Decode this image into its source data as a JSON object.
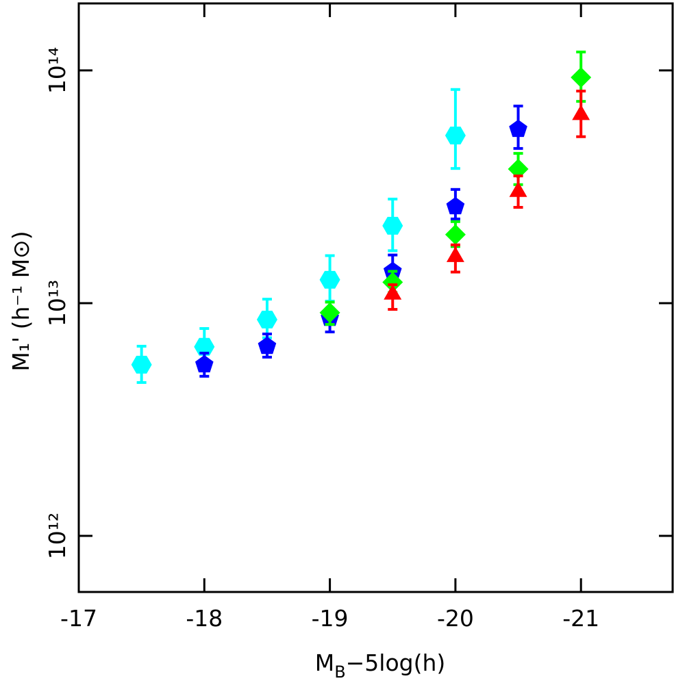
{
  "chart_data": {
    "type": "scatter",
    "x_label_parts": [
      "M",
      "B",
      "−5log(h)"
    ],
    "y_label": "M₁' (h⁻¹ M⊙)",
    "xlim": [
      -17,
      -21.73
    ],
    "xticks": [
      -17,
      -18,
      -19,
      -20,
      -21
    ],
    "ylim": [
      574000000000.0,
      194000000000000.0
    ],
    "log_y": true,
    "yticks": [
      {
        "value": 1000000000000.0,
        "label": "10¹²"
      },
      {
        "value": 10000000000000.0,
        "label": "10¹³"
      },
      {
        "value": 100000000000000.0,
        "label": "10¹⁴"
      }
    ],
    "series": [
      {
        "color": "#00ffff",
        "marker": "hexagon",
        "x": [
          -17.5,
          -18,
          -18.5,
          -19,
          -19.5,
          -20
        ],
        "values": [
          5440000000000.0,
          6490000000000.0,
          8500000000000.0,
          12600000000000.0,
          21500000000000.0,
          52500000000000.0
        ],
        "lower": [
          4560000000000.0,
          5440000000000.0,
          7100000000000.0,
          10200000000000.0,
          16800000000000.0,
          37900000000000.0
        ],
        "upper": [
          6530000000000.0,
          7780000000000.0,
          10400000000000.0,
          16000000000000.0,
          28000000000000.0,
          82800000000000.0
        ]
      },
      {
        "color": "#0000ff",
        "marker": "pentagon",
        "x": [
          -18,
          -18.5,
          -19,
          -19.5,
          -20,
          -20.5
        ],
        "values": [
          5440000000000.0,
          6530000000000.0,
          8620000000000.0,
          13700000000000.0,
          26000000000000.0,
          55900000000000.0
        ],
        "lower": [
          4850000000000.0,
          5860000000000.0,
          7520000000000.0,
          12100000000000.0,
          23000000000000.0,
          46200000000000.0
        ],
        "upper": [
          6100000000000.0,
          7370000000000.0,
          9500000000000.0,
          16100000000000.0,
          30800000000000.0,
          70300000000000.0
        ]
      },
      {
        "color": "#00ff00",
        "marker": "diamond",
        "x": [
          -19,
          -19.5,
          -20,
          -20.5,
          -21
        ],
        "values": [
          9100000000000.0,
          12300000000000.0,
          19700000000000.0,
          37700000000000.0,
          93300000000000.0
        ],
        "lower": [
          8100000000000.0,
          11100000000000.0,
          17500000000000.0,
          32300000000000.0,
          73600000000000.0
        ],
        "upper": [
          10100000000000.0,
          13700000000000.0,
          22400000000000.0,
          44000000000000.0,
          120000000000000.0
        ]
      },
      {
        "color": "#ff0000",
        "marker": "triangle",
        "x": [
          -19.5,
          -20,
          -20.5,
          -21
        ],
        "values": [
          10900000000000.0,
          15800000000000.0,
          30100000000000.0,
          64400000000000.0
        ],
        "lower": [
          9400000000000.0,
          13600000000000.0,
          25800000000000.0,
          51900000000000.0
        ],
        "upper": [
          12000000000000.0,
          17800000000000.0,
          35200000000000.0,
          81500000000000.0
        ]
      }
    ]
  }
}
